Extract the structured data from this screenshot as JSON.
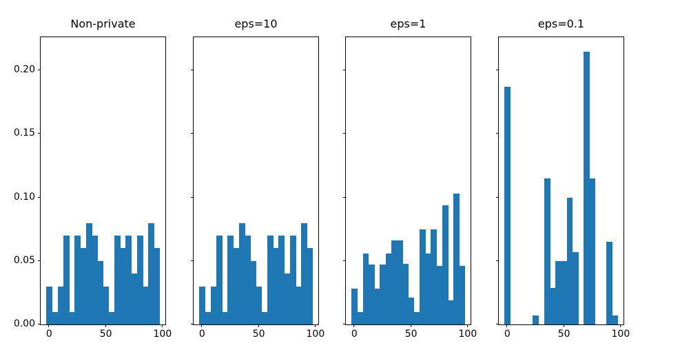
{
  "figure": {
    "background_color": "#ffffff",
    "bar_color": "#1f77b4",
    "spine_color": "#000000",
    "text_color": "#000000"
  },
  "chart_data": {
    "type": "bar",
    "subtype": "histogram",
    "layout": "1x4-grid-shared-y",
    "grid": false,
    "legend": false,
    "bin_start": -2.5,
    "bin_width": 5,
    "xlim": [
      -7.5,
      102.5
    ],
    "ylim": [
      0,
      0.2262
    ],
    "x_tick_values": [
      0,
      50,
      100
    ],
    "x_tick_labels": [
      "0",
      "50",
      "100"
    ],
    "y_tick_values": [
      0.0,
      0.05,
      0.1,
      0.15,
      0.2
    ],
    "y_tick_labels": [
      "0.00",
      "0.05",
      "0.10",
      "0.15",
      "0.20"
    ],
    "y_labels_on_first_subplot_only": true,
    "subplots": [
      {
        "title": "Non-private",
        "values": [
          0.03,
          0.01,
          0.03,
          0.07,
          0.01,
          0.07,
          0.06,
          0.08,
          0.07,
          0.05,
          0.03,
          0.01,
          0.07,
          0.06,
          0.07,
          0.04,
          0.07,
          0.03,
          0.08,
          0.06
        ]
      },
      {
        "title": "eps=10",
        "values": [
          0.03,
          0.01,
          0.03,
          0.07,
          0.01,
          0.07,
          0.06,
          0.08,
          0.07,
          0.05,
          0.03,
          0.01,
          0.07,
          0.06,
          0.07,
          0.04,
          0.07,
          0.03,
          0.08,
          0.06
        ]
      },
      {
        "title": "eps=1",
        "values": [
          0.028,
          0.01,
          0.056,
          0.047,
          0.028,
          0.047,
          0.056,
          0.066,
          0.066,
          0.048,
          0.021,
          0.01,
          0.075,
          0.056,
          0.075,
          0.046,
          0.094,
          0.019,
          0.103,
          0.046
        ]
      },
      {
        "title": "eps=0.1",
        "values": [
          0.187,
          0,
          0,
          0,
          0,
          0.007,
          0,
          0.115,
          0.029,
          0.05,
          0.05,
          0.1,
          0.057,
          0,
          0.215,
          0.115,
          0,
          0,
          0.065,
          0.007
        ]
      }
    ]
  }
}
